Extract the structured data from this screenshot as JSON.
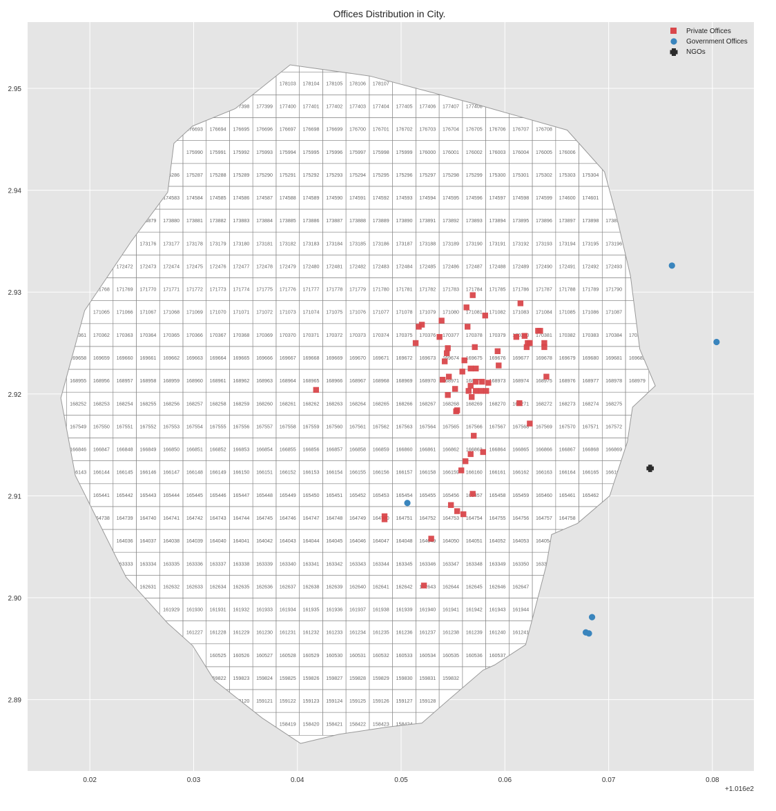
{
  "chart_data": {
    "type": "scatter",
    "title": "Offices Distribution in City.",
    "xlim": [
      0.014,
      0.084
    ],
    "ylim": [
      2.883,
      2.9565
    ],
    "x_offset_label": "+1.016e2",
    "x_ticks": [
      "0.02",
      "0.03",
      "0.04",
      "0.05",
      "0.06",
      "0.07",
      "0.08"
    ],
    "y_ticks": [
      "2.89",
      "2.90",
      "2.91",
      "2.92",
      "2.93",
      "2.94",
      "2.95"
    ],
    "grid": true,
    "legend_position": "top-right",
    "background": "#e5e5e5",
    "grid_cells": {
      "x0": 0.0155,
      "dx": 0.002245,
      "y0": 2.8865,
      "dy": 0.002245,
      "id_base": 158409,
      "id_row_step": 703,
      "id_col_step": 1
    },
    "boundary": [
      [
        0.0403,
        2.8857
      ],
      [
        0.044,
        2.8866
      ],
      [
        0.0486,
        2.8873
      ],
      [
        0.052,
        2.8877
      ],
      [
        0.0547,
        2.8901
      ],
      [
        0.0579,
        2.8929
      ],
      [
        0.059,
        2.8934
      ],
      [
        0.062,
        2.8954
      ],
      [
        0.064,
        2.9032
      ],
      [
        0.0645,
        2.9062
      ],
      [
        0.067,
        2.9073
      ],
      [
        0.0701,
        2.91
      ],
      [
        0.0718,
        2.9153
      ],
      [
        0.0723,
        2.9187
      ],
      [
        0.0745,
        2.9208
      ],
      [
        0.073,
        2.9244
      ],
      [
        0.0721,
        2.9316
      ],
      [
        0.0707,
        2.9377
      ],
      [
        0.0696,
        2.9418
      ],
      [
        0.066,
        2.9459
      ],
      [
        0.057,
        2.9485
      ],
      [
        0.047,
        2.9512
      ],
      [
        0.0393,
        2.9523
      ],
      [
        0.034,
        2.948
      ],
      [
        0.0299,
        2.9463
      ],
      [
        0.0281,
        2.9446
      ],
      [
        0.0275,
        2.9398
      ],
      [
        0.024,
        2.935
      ],
      [
        0.0195,
        2.9282
      ],
      [
        0.0172,
        2.9196
      ],
      [
        0.0186,
        2.912
      ],
      [
        0.0235,
        2.902
      ],
      [
        0.0275,
        2.8975
      ],
      [
        0.0299,
        2.8953
      ],
      [
        0.032,
        2.8919
      ],
      [
        0.0366,
        2.8882
      ]
    ],
    "series": [
      {
        "name": "Private Offices",
        "marker": "square",
        "color": "#d9474b",
        "points": [
          [
            0.0581,
            2.9277
          ],
          [
            0.0569,
            2.9297
          ],
          [
            0.0563,
            2.9285
          ],
          [
            0.0615,
            2.9289
          ],
          [
            0.0517,
            2.9266
          ],
          [
            0.0564,
            2.9266
          ],
          [
            0.0539,
            2.9272
          ],
          [
            0.0537,
            2.9256
          ],
          [
            0.0514,
            2.925
          ],
          [
            0.0545,
            2.9245
          ],
          [
            0.0544,
            2.924
          ],
          [
            0.0571,
            2.9246
          ],
          [
            0.0593,
            2.9242
          ],
          [
            0.0611,
            2.9256
          ],
          [
            0.0619,
            2.9257
          ],
          [
            0.0632,
            2.9262
          ],
          [
            0.0634,
            2.9262
          ],
          [
            0.0622,
            2.925
          ],
          [
            0.0624,
            2.925
          ],
          [
            0.0621,
            2.9246
          ],
          [
            0.0638,
            2.925
          ],
          [
            0.0638,
            2.9246
          ],
          [
            0.0561,
            2.9233
          ],
          [
            0.0542,
            2.9232
          ],
          [
            0.0594,
            2.9228
          ],
          [
            0.0572,
            2.9225
          ],
          [
            0.0567,
            2.9225
          ],
          [
            0.0559,
            2.9222
          ],
          [
            0.064,
            2.9217
          ],
          [
            0.0546,
            2.9217
          ],
          [
            0.054,
            2.9214
          ],
          [
            0.0578,
            2.9212
          ],
          [
            0.0572,
            2.9212
          ],
          [
            0.0584,
            2.9211
          ],
          [
            0.0552,
            2.9205
          ],
          [
            0.0565,
            2.9203
          ],
          [
            0.0572,
            2.9203
          ],
          [
            0.0577,
            2.9203
          ],
          [
            0.0582,
            2.9203
          ],
          [
            0.0545,
            2.9199
          ],
          [
            0.0568,
            2.9197
          ],
          [
            0.0418,
            2.9204
          ],
          [
            0.0567,
            2.9208
          ],
          [
            0.0614,
            2.9191
          ],
          [
            0.0553,
            2.9183
          ],
          [
            0.0554,
            2.9184
          ],
          [
            0.0624,
            2.9171
          ],
          [
            0.057,
            2.9159
          ],
          [
            0.0579,
            2.9143
          ],
          [
            0.0567,
            2.9141
          ],
          [
            0.0562,
            2.9134
          ],
          [
            0.0558,
            2.9125
          ],
          [
            0.0569,
            2.9102
          ],
          [
            0.0548,
            2.9091
          ],
          [
            0.0554,
            2.9085
          ],
          [
            0.056,
            2.9082
          ],
          [
            0.0484,
            2.908
          ],
          [
            0.0484,
            2.9077
          ],
          [
            0.0529,
            2.9058
          ],
          [
            0.0522,
            2.9012
          ],
          [
            0.052,
            2.9268
          ]
        ]
      },
      {
        "name": "Government Offices",
        "marker": "circle",
        "color": "#3a85bd",
        "points": [
          [
            0.0761,
            2.9326
          ],
          [
            0.0804,
            2.9251
          ],
          [
            0.0684,
            2.8981
          ],
          [
            0.0678,
            2.8966
          ],
          [
            0.0681,
            2.8965
          ],
          [
            0.0506,
            2.9093
          ]
        ]
      },
      {
        "name": "NGOs",
        "marker": "plus",
        "color": "#2b2b2b",
        "points": [
          [
            0.074,
            2.9127
          ]
        ]
      }
    ]
  }
}
